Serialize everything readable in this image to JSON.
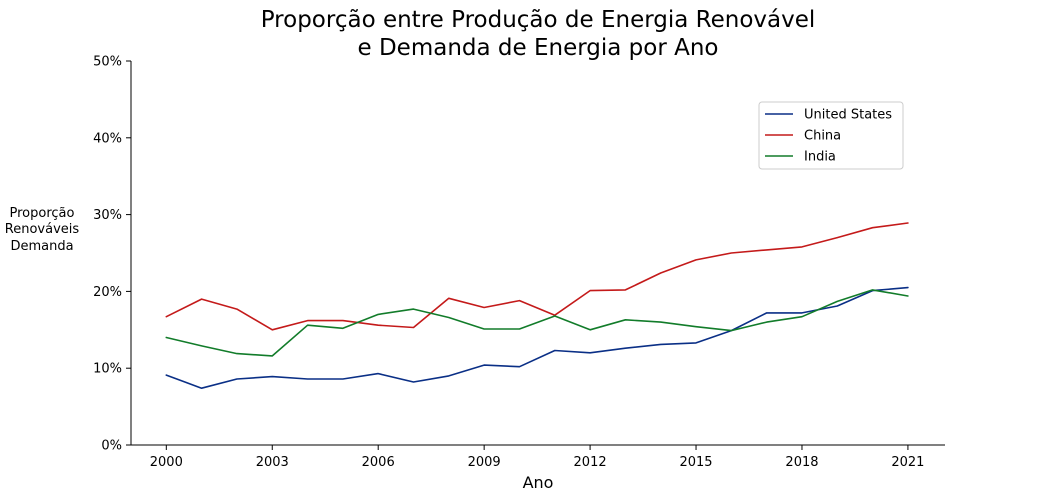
{
  "chart_data": {
    "type": "line",
    "title_lines": [
      "Proporção entre Produção de Energia Renovável",
      "e Demanda de Energia por Ano"
    ],
    "xlabel": "Ano",
    "ylabel_lines": [
      "Proporção",
      "Renováveis",
      "Demanda"
    ],
    "x": [
      2000,
      2001,
      2002,
      2003,
      2004,
      2005,
      2006,
      2007,
      2008,
      2009,
      2010,
      2011,
      2012,
      2013,
      2014,
      2015,
      2016,
      2017,
      2018,
      2019,
      2020,
      2021
    ],
    "xticks": [
      2000,
      2003,
      2006,
      2009,
      2012,
      2015,
      2018,
      2021
    ],
    "xtick_labels": [
      "2000",
      "2003",
      "2006",
      "2009",
      "2012",
      "2015",
      "2018",
      "2021"
    ],
    "xlim": [
      1999,
      2022.05
    ],
    "ylim": [
      0,
      50
    ],
    "yticks": [
      0,
      10,
      20,
      30,
      40,
      50
    ],
    "ytick_labels": [
      "0%",
      "10%",
      "20%",
      "30%",
      "40%",
      "50%"
    ],
    "grid": false,
    "legend_position": "upper-right",
    "series": [
      {
        "name": "United States",
        "color": "#0a2f86",
        "values": [
          9.1,
          7.4,
          8.6,
          8.9,
          8.6,
          8.6,
          9.3,
          8.2,
          9.0,
          10.4,
          10.2,
          12.3,
          12.0,
          12.6,
          13.1,
          13.3,
          14.9,
          17.2,
          17.2,
          18.1,
          20.1,
          20.5
        ]
      },
      {
        "name": "China",
        "color": "#c41a1a",
        "values": [
          16.7,
          19.0,
          17.7,
          15.0,
          16.2,
          16.2,
          15.6,
          15.3,
          19.1,
          17.9,
          18.8,
          16.9,
          20.1,
          20.2,
          22.4,
          24.1,
          25.0,
          25.4,
          25.8,
          27.0,
          28.3,
          28.9
        ]
      },
      {
        "name": "India",
        "color": "#127c2a",
        "values": [
          14.0,
          12.9,
          11.9,
          11.6,
          15.6,
          15.2,
          17.0,
          17.7,
          16.6,
          15.1,
          15.1,
          16.8,
          15.0,
          16.3,
          16.0,
          15.4,
          14.9,
          16.0,
          16.7,
          18.7,
          20.2,
          19.4
        ]
      }
    ]
  }
}
